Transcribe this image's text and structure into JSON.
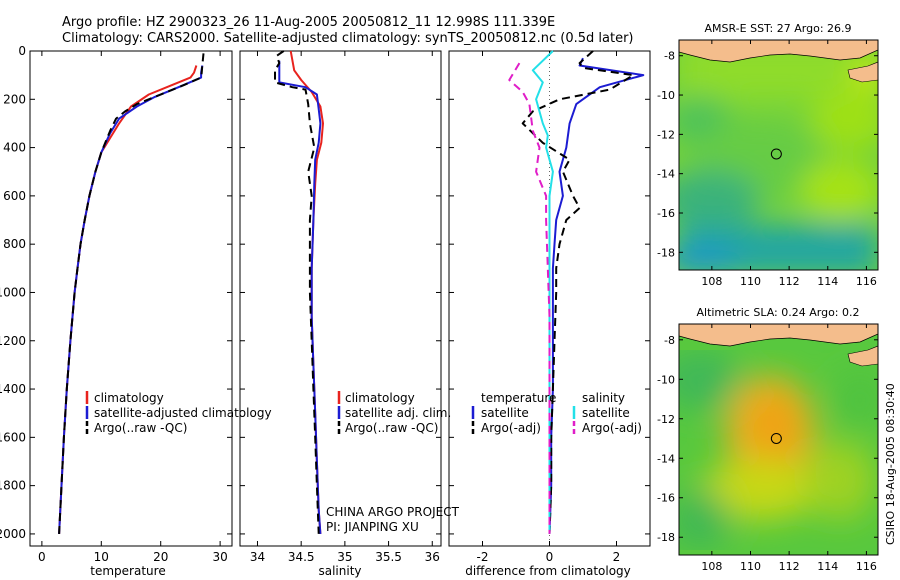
{
  "header": {
    "line1": "Argo profile: HZ 2900323_26 11-Aug-2005 20050812_11 12.998S 111.339E",
    "line2": "Climatology: CARS2000. Satellite-adjusted climatology: synTS_20050812.nc (0.5d later)"
  },
  "side_label": "CSIRO 18-Aug-2005 08:30:40",
  "colors": {
    "climatology": "#e8231e",
    "satellite": "#1c1cd2",
    "argo": "#000000",
    "salinity_satellite": "#22e0e8",
    "salinity_argo": "#e01ec8",
    "land": "#f4bd8c"
  },
  "chart_data": [
    {
      "type": "line",
      "id": "temperature",
      "xlabel": "temperature",
      "ylabel": "",
      "xlim": [
        -2,
        32
      ],
      "ylim": [
        2050,
        0
      ],
      "xticks": [
        0,
        10,
        20,
        30
      ],
      "yticks": [
        0,
        200,
        400,
        600,
        800,
        1000,
        1200,
        1400,
        1600,
        1800,
        2000
      ],
      "legend": {
        "placement": "lower-right",
        "entries": [
          "climatology",
          "satellite-adjusted climatology",
          "Argo(..raw -QC)"
        ]
      },
      "series": [
        {
          "name": "climatology",
          "color": "#e8231e",
          "dash": "",
          "points": [
            [
              26.0,
              60
            ],
            [
              25.6,
              90
            ],
            [
              25.0,
              110
            ],
            [
              22,
              140
            ],
            [
              18,
              180
            ],
            [
              15,
              230
            ],
            [
              13,
              300
            ],
            [
              11.5,
              360
            ],
            [
              10,
              420
            ],
            [
              9,
              500
            ],
            [
              8,
              600
            ],
            [
              7.2,
              700
            ],
            [
              6.5,
              800
            ],
            [
              6.0,
              900
            ],
            [
              5.5,
              1000
            ],
            [
              4.8,
              1200
            ],
            [
              4.2,
              1400
            ],
            [
              3.7,
              1600
            ],
            [
              3.3,
              1800
            ],
            [
              3.0,
              1950
            ],
            [
              2.9,
              2000
            ]
          ]
        },
        {
          "name": "satellite-adjusted climatology",
          "color": "#1c1cd2",
          "dash": "",
          "points": [
            [
              27.0,
              60
            ],
            [
              26.8,
              90
            ],
            [
              26.8,
              110
            ],
            [
              23,
              150
            ],
            [
              19,
              190
            ],
            [
              16,
              230
            ],
            [
              13,
              280
            ],
            [
              11.5,
              340
            ],
            [
              10,
              420
            ],
            [
              9,
              500
            ],
            [
              8,
              600
            ],
            [
              7.2,
              700
            ],
            [
              6.5,
              800
            ],
            [
              6.0,
              900
            ],
            [
              5.5,
              1000
            ],
            [
              4.8,
              1200
            ],
            [
              4.2,
              1400
            ],
            [
              3.7,
              1600
            ],
            [
              3.3,
              1800
            ],
            [
              3.0,
              1950
            ],
            [
              2.9,
              2000
            ]
          ]
        },
        {
          "name": "Argo(..raw -QC)",
          "color": "#000000",
          "dash": "8,5",
          "points": [
            [
              27.2,
              10
            ],
            [
              27.0,
              60
            ],
            [
              26.9,
              90
            ],
            [
              26.8,
              110
            ],
            [
              24,
              140
            ],
            [
              20,
              180
            ],
            [
              16,
              220
            ],
            [
              14,
              250
            ],
            [
              12.5,
              280
            ],
            [
              11.5,
              330
            ],
            [
              10,
              420
            ],
            [
              9,
              500
            ],
            [
              8,
              600
            ],
            [
              7.2,
              700
            ],
            [
              6.5,
              800
            ],
            [
              6.0,
              900
            ],
            [
              5.5,
              1000
            ],
            [
              4.8,
              1200
            ],
            [
              4.2,
              1400
            ],
            [
              3.7,
              1600
            ],
            [
              3.3,
              1800
            ],
            [
              3.0,
              1950
            ],
            [
              2.9,
              2000
            ]
          ]
        }
      ]
    },
    {
      "type": "line",
      "id": "salinity",
      "xlabel": "salinity",
      "ylabel": "",
      "xlim": [
        33.8,
        36.1
      ],
      "ylim": [
        2050,
        0
      ],
      "xticks": [
        34,
        34.5,
        35,
        35.5,
        36
      ],
      "yticks": [
        0,
        200,
        400,
        600,
        800,
        1000,
        1200,
        1400,
        1600,
        1800,
        2000
      ],
      "legend": {
        "placement": "lower-right",
        "entries": [
          "climatology",
          "satellite adj. clim.",
          "Argo(..raw -QC)"
        ]
      },
      "annotations": [
        "CHINA ARGO PROJECT",
        "PI: JIANPING XU"
      ],
      "series": [
        {
          "name": "climatology",
          "color": "#e8231e",
          "dash": "",
          "points": [
            [
              34.38,
              0
            ],
            [
              34.42,
              80
            ],
            [
              34.5,
              120
            ],
            [
              34.62,
              170
            ],
            [
              34.72,
              230
            ],
            [
              34.75,
              300
            ],
            [
              34.73,
              380
            ],
            [
              34.68,
              450
            ],
            [
              34.66,
              550
            ],
            [
              34.64,
              700
            ],
            [
              34.62,
              900
            ],
            [
              34.62,
              1100
            ],
            [
              34.64,
              1300
            ],
            [
              34.66,
              1500
            ],
            [
              34.68,
              1700
            ],
            [
              34.7,
              1900
            ],
            [
              34.72,
              2000
            ]
          ]
        },
        {
          "name": "satellite adj. clim.",
          "color": "#1c1cd2",
          "dash": "",
          "points": [
            [
              34.25,
              40
            ],
            [
              34.25,
              80
            ],
            [
              34.25,
              130
            ],
            [
              34.55,
              150
            ],
            [
              34.68,
              180
            ],
            [
              34.7,
              240
            ],
            [
              34.72,
              300
            ],
            [
              34.7,
              380
            ],
            [
              34.66,
              450
            ],
            [
              34.65,
              550
            ],
            [
              34.64,
              700
            ],
            [
              34.62,
              900
            ],
            [
              34.62,
              1100
            ],
            [
              34.64,
              1300
            ],
            [
              34.66,
              1500
            ],
            [
              34.68,
              1700
            ],
            [
              34.7,
              1900
            ],
            [
              34.72,
              2000
            ]
          ]
        },
        {
          "name": "Argo(..raw -QC)",
          "color": "#000000",
          "dash": "8,5",
          "points": [
            [
              34.3,
              0
            ],
            [
              34.22,
              20
            ],
            [
              34.25,
              50
            ],
            [
              34.2,
              80
            ],
            [
              34.2,
              130
            ],
            [
              34.4,
              150
            ],
            [
              34.55,
              160
            ],
            [
              34.58,
              220
            ],
            [
              34.6,
              300
            ],
            [
              34.65,
              400
            ],
            [
              34.58,
              500
            ],
            [
              34.62,
              600
            ],
            [
              34.6,
              700
            ],
            [
              34.6,
              800
            ],
            [
              34.6,
              1000
            ],
            [
              34.62,
              1200
            ],
            [
              34.64,
              1400
            ],
            [
              34.66,
              1600
            ],
            [
              34.68,
              1800
            ],
            [
              34.7,
              2000
            ]
          ]
        }
      ]
    },
    {
      "type": "line",
      "id": "difference",
      "xlabel": "difference from climatology",
      "ylabel": "",
      "xlim": [
        -3,
        3
      ],
      "ylim": [
        2050,
        0
      ],
      "xticks": [
        -2,
        0,
        2
      ],
      "yticks": [
        0,
        200,
        400,
        600,
        800,
        1000,
        1200,
        1400,
        1600,
        1800,
        2000
      ],
      "legend": {
        "placement": "lower-right",
        "left_title": "temperature",
        "right_title": "salinity",
        "entries": [
          "satellite",
          "Argo(-adj)",
          "satellite",
          "Argo(-adj)"
        ]
      },
      "series": [
        {
          "name": "temperature satellite",
          "color": "#1c1cd2",
          "dash": "",
          "points": [
            [
              1.0,
              30
            ],
            [
              0.9,
              60
            ],
            [
              2.8,
              100
            ],
            [
              1.5,
              150
            ],
            [
              0.8,
              220
            ],
            [
              0.6,
              300
            ],
            [
              0.5,
              400
            ],
            [
              0.3,
              500
            ],
            [
              0.4,
              600
            ],
            [
              0.2,
              700
            ],
            [
              0.15,
              800
            ],
            [
              0.1,
              900
            ],
            [
              0.1,
              1000
            ],
            [
              0.1,
              1200
            ],
            [
              0.1,
              1400
            ],
            [
              0.05,
              1600
            ],
            [
              0.05,
              1800
            ],
            [
              0.0,
              2000
            ]
          ]
        },
        {
          "name": "temperature Argo(-adj)",
          "color": "#000000",
          "dash": "8,5",
          "points": [
            [
              1.3,
              0
            ],
            [
              0.9,
              50
            ],
            [
              1.0,
              70
            ],
            [
              2.5,
              100
            ],
            [
              1.8,
              160
            ],
            [
              0.3,
              200
            ],
            [
              -0.5,
              250
            ],
            [
              -0.8,
              300
            ],
            [
              -0.2,
              380
            ],
            [
              0.6,
              450
            ],
            [
              0.4,
              500
            ],
            [
              0.7,
              600
            ],
            [
              0.9,
              650
            ],
            [
              0.5,
              700
            ],
            [
              0.3,
              800
            ],
            [
              0.2,
              900
            ],
            [
              0.2,
              1000
            ],
            [
              0.15,
              1200
            ],
            [
              0.1,
              1400
            ],
            [
              0.05,
              1600
            ],
            [
              0.05,
              1800
            ],
            [
              0.0,
              2000
            ]
          ]
        },
        {
          "name": "salinity satellite",
          "color": "#22e0e8",
          "dash": "",
          "points": [
            [
              0.1,
              0
            ],
            [
              -0.5,
              80
            ],
            [
              -0.2,
              130
            ],
            [
              -0.4,
              200
            ],
            [
              -0.2,
              300
            ],
            [
              -0.05,
              350
            ],
            [
              -0.1,
              400
            ],
            [
              0.1,
              500
            ],
            [
              0.0,
              600
            ],
            [
              0.0,
              800
            ],
            [
              0.0,
              1000
            ],
            [
              0.0,
              1400
            ],
            [
              0.0,
              2000
            ]
          ]
        },
        {
          "name": "salinity Argo(-adj)",
          "color": "#e01ec8",
          "dash": "8,5",
          "points": [
            [
              -0.9,
              50
            ],
            [
              -1.2,
              120
            ],
            [
              -0.8,
              170
            ],
            [
              -0.6,
              220
            ],
            [
              -0.5,
              330
            ],
            [
              -0.3,
              400
            ],
            [
              -0.4,
              500
            ],
            [
              -0.1,
              600
            ],
            [
              -0.1,
              700
            ],
            [
              -0.05,
              900
            ],
            [
              0.0,
              1100
            ],
            [
              0.0,
              1400
            ],
            [
              0.0,
              1700
            ],
            [
              0.0,
              2000
            ]
          ]
        }
      ]
    },
    {
      "type": "heatmap",
      "id": "sst-map",
      "title": "AMSR-E SST: 27 Argo: 26.9",
      "xlim": [
        106.3,
        116.6
      ],
      "ylim": [
        -18.9,
        -7.2
      ],
      "xticks": [
        108,
        110,
        112,
        114,
        116
      ],
      "yticks": [
        -8,
        -10,
        -12,
        -14,
        -16,
        -18
      ],
      "marker": {
        "lon": 111.339,
        "lat": -12.998
      }
    },
    {
      "type": "heatmap",
      "id": "sla-map",
      "title": "Altimetric SLA: 0.24 Argo: 0.2",
      "xlim": [
        106.3,
        116.6
      ],
      "ylim": [
        -18.9,
        -7.2
      ],
      "xticks": [
        108,
        110,
        112,
        114,
        116
      ],
      "yticks": [
        -8,
        -10,
        -12,
        -14,
        -16,
        -18
      ],
      "marker": {
        "lon": 111.339,
        "lat": -12.998
      }
    }
  ]
}
